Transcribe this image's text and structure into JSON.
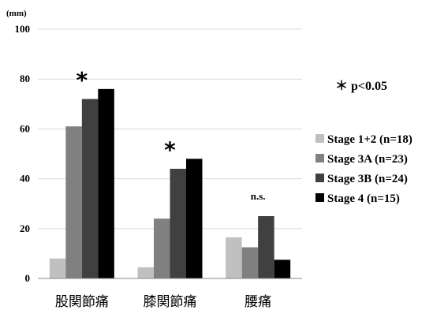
{
  "chart_data": {
    "type": "bar",
    "unit_label": "(mm)",
    "categories": [
      "股関節痛",
      "膝関節痛",
      "腰痛"
    ],
    "series": [
      {
        "name": "Stage 1+2 (n=18)",
        "color": "#c0c0c0",
        "values": [
          8,
          4.5,
          16.5
        ]
      },
      {
        "name": "Stage 3A (n=23)",
        "color": "#808080",
        "values": [
          61,
          24,
          12.5
        ]
      },
      {
        "name": "Stage 3B (n=24)",
        "color": "#404040",
        "values": [
          72,
          44,
          25
        ]
      },
      {
        "name": "Stage 4 (n=15)",
        "color": "#000000",
        "values": [
          76,
          48,
          7.5
        ]
      }
    ],
    "ylim": [
      0,
      100
    ],
    "yticks": [
      0,
      20,
      40,
      60,
      80,
      100
    ],
    "grid": true,
    "significance": [
      "*",
      "*",
      "n.s."
    ],
    "annotation": "＊ p<0.05",
    "legend_position": "right"
  }
}
